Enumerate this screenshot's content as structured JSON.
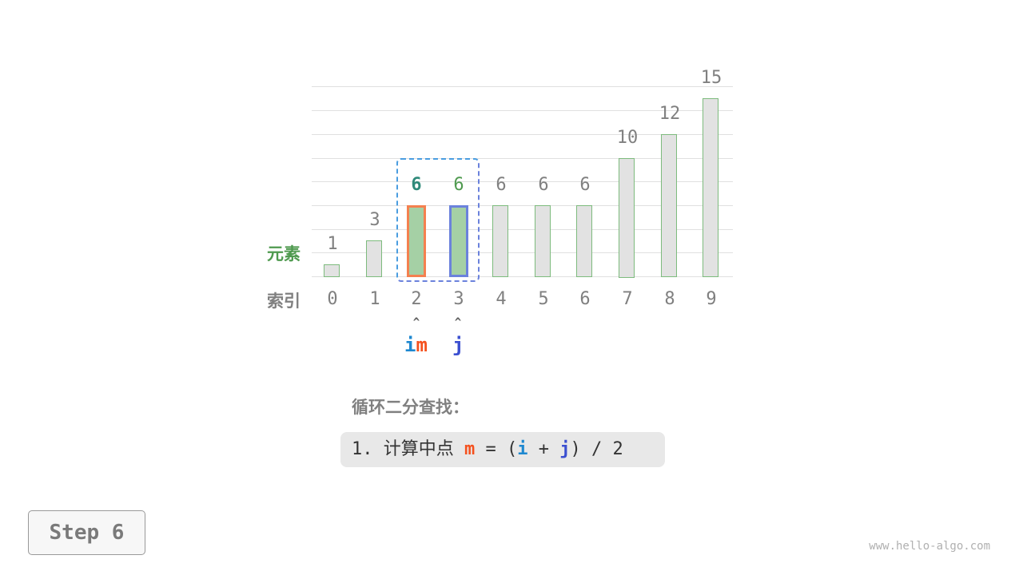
{
  "row_labels": {
    "elements": "元素",
    "indices": "索引"
  },
  "chart_data": {
    "type": "bar",
    "categories": [
      "0",
      "1",
      "2",
      "3",
      "4",
      "5",
      "6",
      "7",
      "8",
      "9"
    ],
    "values": [
      1,
      3,
      6,
      6,
      6,
      6,
      6,
      10,
      12,
      15
    ],
    "ylim": [
      0,
      16
    ],
    "grid": true,
    "highlighted": {
      "m": 2,
      "j": 3
    },
    "highlight_colors": {
      "i": "#1e88d0",
      "m": "#f4511e",
      "j": "#3b4fd0",
      "bar_m": "#f4804f",
      "bar_j": "#6b82dc",
      "value_m": "#2f8a7a",
      "value_j": "#4f9a4f"
    }
  },
  "pointers": {
    "im_i": "i",
    "im_m": "m",
    "j": "j",
    "arrow": "^"
  },
  "title": "循环二分查找：",
  "code": {
    "prefix": "1. 计算中点 ",
    "m": "m",
    "eq": " = (",
    "i": "i",
    "plus": " + ",
    "j": "j",
    "suffix": ") / 2"
  },
  "step_label": "Step 6",
  "watermark": "www.hello-algo.com"
}
